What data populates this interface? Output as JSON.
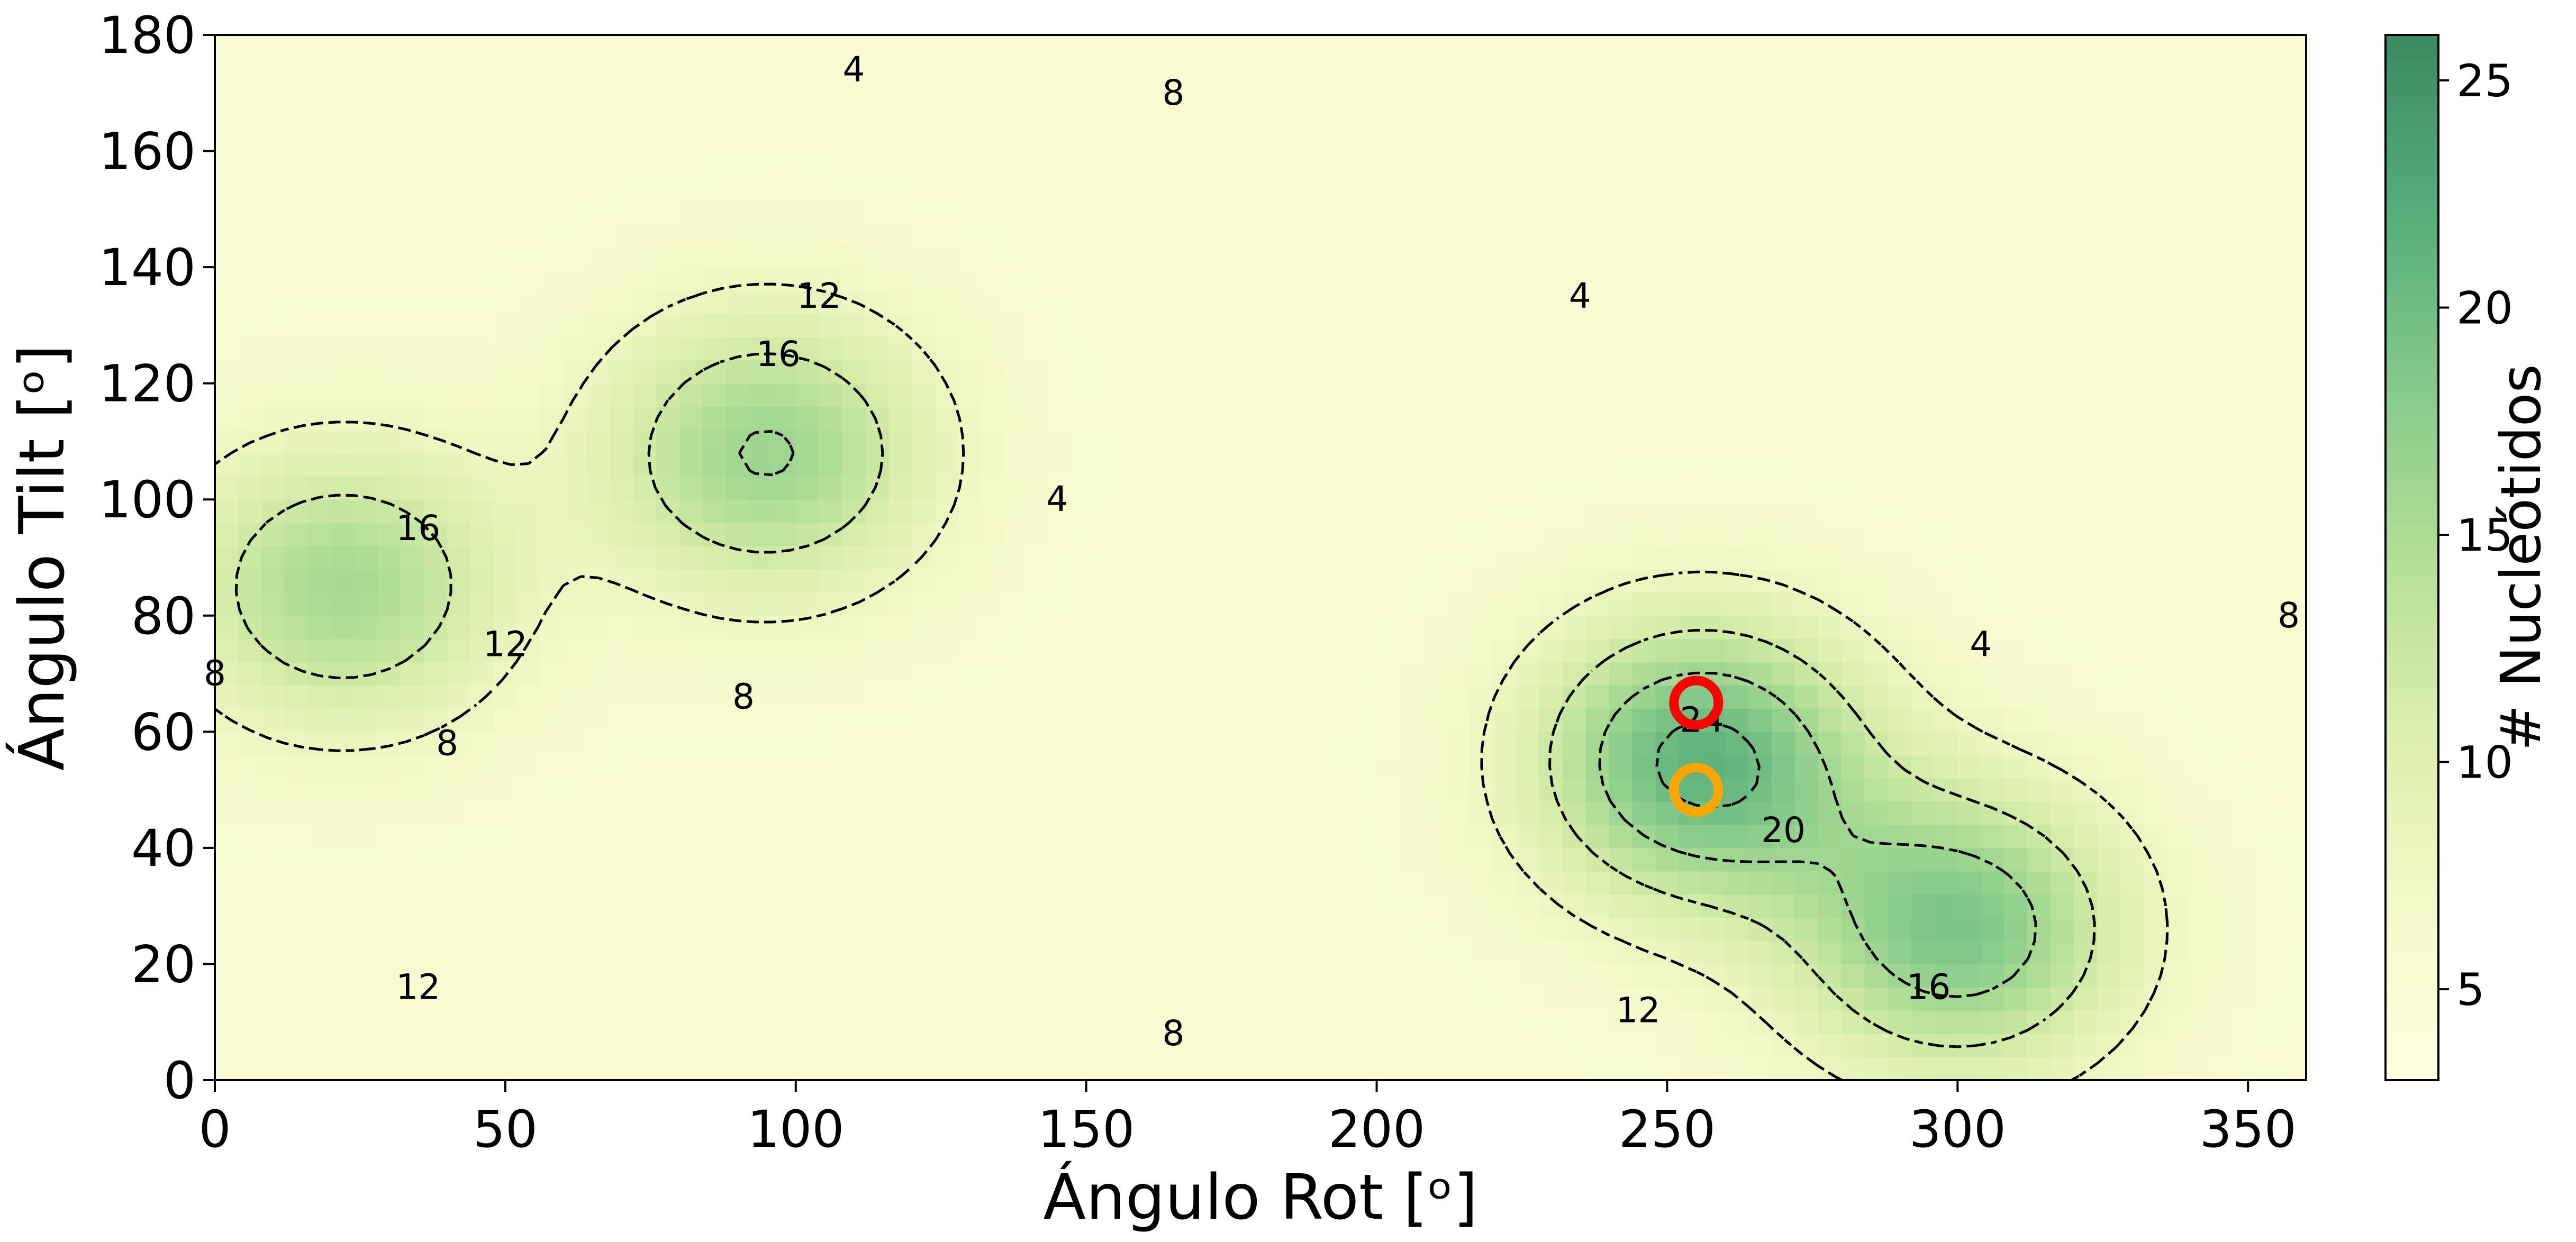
{
  "chart_data": {
    "type": "heatmap",
    "xlabel": "Ángulo Rot [ᵒ]",
    "ylabel": "Ángulo Tilt [ᵒ]",
    "xlim": [
      0,
      360
    ],
    "ylim": [
      0,
      180
    ],
    "x_ticks": [
      "0",
      "50",
      "100",
      "150",
      "200",
      "250",
      "300",
      "350"
    ],
    "y_ticks": [
      "0",
      "20",
      "40",
      "60",
      "80",
      "100",
      "120",
      "140",
      "160",
      "180"
    ],
    "colorbar": {
      "label": "# Nucleótidos",
      "range": [
        3,
        26
      ],
      "ticks": [
        "5",
        "10",
        "15",
        "20",
        "25"
      ],
      "colormap": "YlGn-like",
      "colors": [
        "#ffffe0",
        "#f4f9c9",
        "#dcefad",
        "#b3df96",
        "#84c98a",
        "#55ad79",
        "#3b8a62"
      ]
    },
    "grid": false,
    "hotspots": [
      {
        "rot": 22,
        "tilt": 85,
        "value": 18
      },
      {
        "rot": 95,
        "tilt": 108,
        "value": 19
      },
      {
        "rot": 256,
        "tilt": 55,
        "value": 25
      },
      {
        "rot": 300,
        "tilt": 26,
        "value": 22
      }
    ],
    "contour_levels": [
      4,
      8,
      12,
      16,
      20,
      24
    ],
    "contour_labels": [
      {
        "text": "4",
        "rot": 110,
        "tilt": 174
      },
      {
        "text": "8",
        "rot": 165,
        "tilt": 170
      },
      {
        "text": "4",
        "rot": 235,
        "tilt": 135
      },
      {
        "text": "12",
        "rot": 104,
        "tilt": 135
      },
      {
        "text": "16",
        "rot": 97,
        "tilt": 125
      },
      {
        "text": "16",
        "rot": 35,
        "tilt": 95
      },
      {
        "text": "4",
        "rot": 145,
        "tilt": 100
      },
      {
        "text": "12",
        "rot": 50,
        "tilt": 75
      },
      {
        "text": "8",
        "rot": 91,
        "tilt": 66
      },
      {
        "text": "8",
        "rot": 40,
        "tilt": 58
      },
      {
        "text": "24",
        "rot": 256,
        "tilt": 62
      },
      {
        "text": "20",
        "rot": 270,
        "tilt": 43
      },
      {
        "text": "4",
        "rot": 304,
        "tilt": 75
      },
      {
        "text": "8",
        "rot": 357,
        "tilt": 80
      },
      {
        "text": "8",
        "rot": 0,
        "tilt": 70
      },
      {
        "text": "12",
        "rot": 35,
        "tilt": 16
      },
      {
        "text": "8",
        "rot": 165,
        "tilt": 8
      },
      {
        "text": "12",
        "rot": 245,
        "tilt": 12
      },
      {
        "text": "16",
        "rot": 295,
        "tilt": 16
      }
    ],
    "markers": [
      {
        "color": "#ff0000",
        "rot": 255,
        "tilt": 65
      },
      {
        "color": "#ffa500",
        "rot": 255,
        "tilt": 50
      }
    ]
  }
}
